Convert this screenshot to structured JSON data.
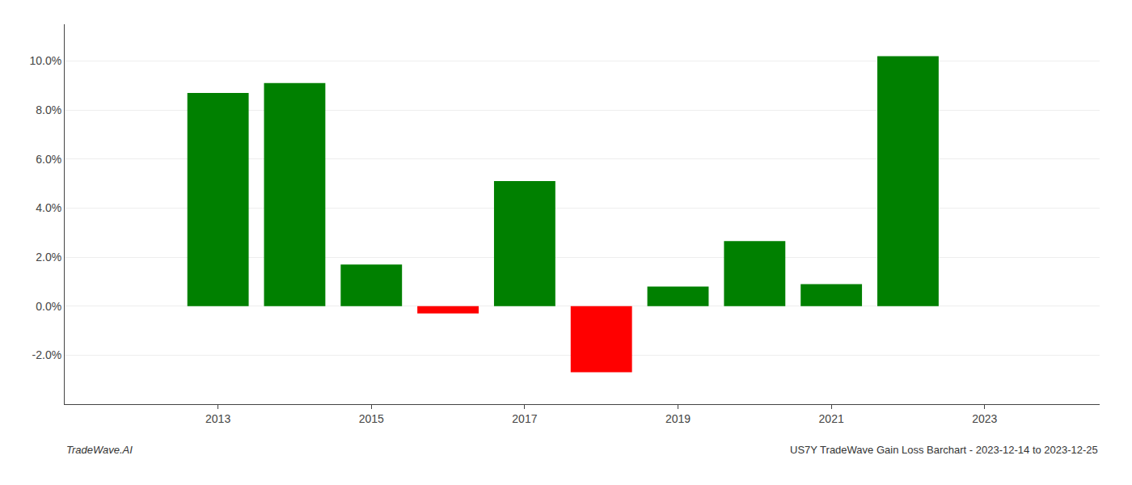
{
  "chart_data": {
    "type": "bar",
    "x": [
      2013,
      2014,
      2015,
      2016,
      2017,
      2018,
      2019,
      2020,
      2021,
      2022
    ],
    "values": [
      0.087,
      0.091,
      0.017,
      -0.003,
      0.051,
      -0.027,
      0.008,
      0.0265,
      0.009,
      0.102
    ],
    "colors": [
      "#008000",
      "#008000",
      "#008000",
      "#ff0000",
      "#008000",
      "#ff0000",
      "#008000",
      "#008000",
      "#008000",
      "#008000"
    ],
    "xlim": [
      2011.0,
      2024.5
    ],
    "xticks": [
      2013,
      2015,
      2017,
      2019,
      2021,
      2023
    ],
    "ylim": [
      -0.04,
      0.115
    ],
    "yticks": [
      {
        "value": -0.02,
        "label": "-2.0%"
      },
      {
        "value": 0.0,
        "label": "0.0%"
      },
      {
        "value": 0.02,
        "label": "2.0%"
      },
      {
        "value": 0.04,
        "label": "4.0%"
      },
      {
        "value": 0.06,
        "label": "6.0%"
      },
      {
        "value": 0.08,
        "label": "8.0%"
      },
      {
        "value": 0.1,
        "label": "10.0%"
      }
    ],
    "grid": true,
    "annotations": [
      "TradeWave.AI",
      "US7Y TradeWave Gain Loss Barchart - 2023-12-14 to 2023-12-25"
    ]
  }
}
